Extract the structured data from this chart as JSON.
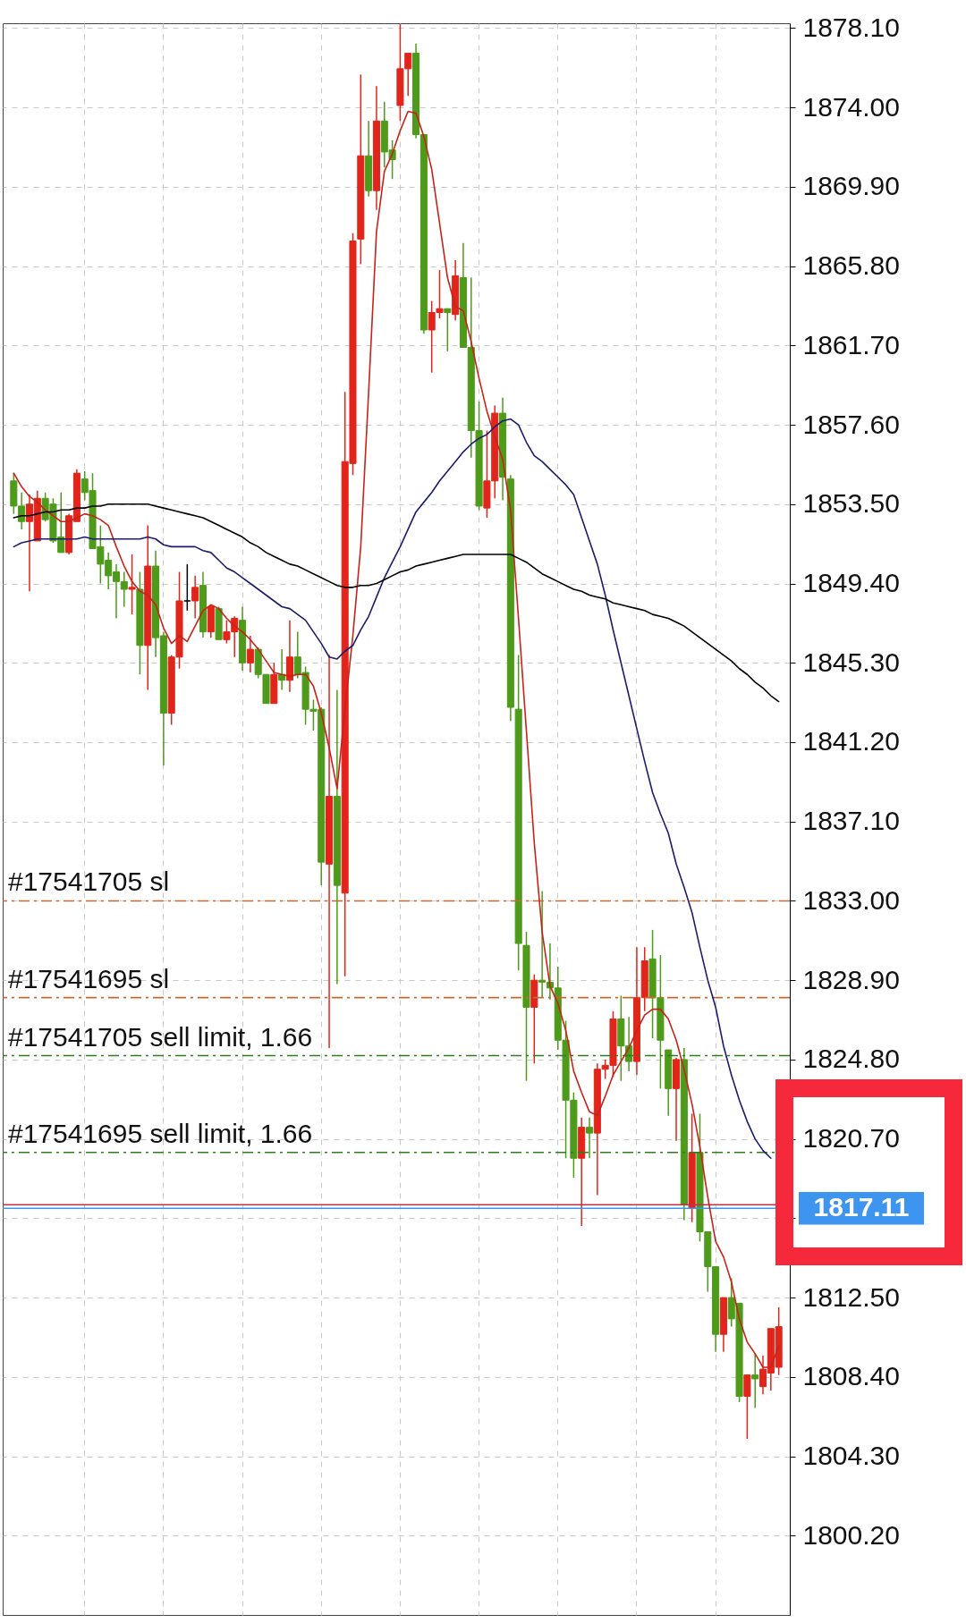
{
  "chart_data": {
    "type": "candlestick",
    "categories": [
      null,
      null,
      null,
      null,
      null,
      null,
      null,
      null,
      null,
      null,
      null,
      null,
      null,
      null,
      null,
      null,
      null,
      null,
      null,
      null,
      null,
      null,
      null,
      null,
      null,
      null,
      null,
      null,
      null,
      null,
      null,
      null,
      null,
      null,
      null,
      null,
      null,
      null,
      null,
      null,
      null,
      null,
      null,
      null,
      null,
      null,
      null,
      null,
      null,
      null,
      null,
      null,
      null,
      null,
      null,
      null,
      null,
      null,
      null,
      null,
      null,
      null,
      null,
      null,
      null,
      null,
      null,
      null,
      null,
      null,
      null,
      null,
      null,
      null,
      null,
      null,
      null,
      null,
      null,
      null,
      null,
      null,
      null,
      null,
      null,
      null,
      null,
      null,
      null,
      null,
      null,
      null,
      null,
      null,
      null,
      null,
      null,
      null
    ],
    "ohlc": [
      [
        1854.7,
        1855.1,
        1853.0,
        1853.4
      ],
      [
        1853.4,
        1854.1,
        1852.2,
        1852.6
      ],
      [
        1852.6,
        1854.0,
        1849.0,
        1853.5
      ],
      [
        1851.6,
        1854.2,
        1851.6,
        1853.8
      ],
      [
        1853.8,
        1854.1,
        1852.6,
        1852.7
      ],
      [
        1853.5,
        1853.8,
        1851.5,
        1851.6
      ],
      [
        1851.8,
        1854.1,
        1851.0,
        1851.0
      ],
      [
        1851.0,
        1853.0,
        1850.9,
        1852.9
      ],
      [
        1852.6,
        1855.3,
        1852.6,
        1855.1
      ],
      [
        1854.8,
        1855.2,
        1853.7,
        1854.1
      ],
      [
        1854.2,
        1855.1,
        1851.2,
        1851.2
      ],
      [
        1851.3,
        1852.4,
        1849.4,
        1850.4
      ],
      [
        1850.6,
        1851.0,
        1849.1,
        1849.8
      ],
      [
        1850.0,
        1850.4,
        1847.6,
        1849.5
      ],
      [
        1849.5,
        1850.0,
        1848.2,
        1849.1
      ],
      [
        1849.1,
        1850.9,
        1847.8,
        1849.2
      ],
      [
        1849.1,
        1850.0,
        1844.7,
        1846.2
      ],
      [
        1846.2,
        1852.4,
        1843.9,
        1850.3
      ],
      [
        1850.3,
        1851.1,
        1845.6,
        1846.6
      ],
      [
        1846.7,
        1846.9,
        1840.0,
        1842.7
      ],
      [
        1842.7,
        1845.7,
        1842.1,
        1845.6
      ],
      [
        1845.6,
        1850.0,
        1845.0,
        1848.5
      ],
      [
        1848.5,
        1850.4,
        1848.0,
        1848.5
      ],
      [
        1848.5,
        1849.8,
        1847.6,
        1849.2
      ],
      [
        1849.3,
        1850.0,
        1846.6,
        1846.9
      ],
      [
        1846.9,
        1848.3,
        1846.6,
        1848.2
      ],
      [
        1848.1,
        1848.2,
        1846.5,
        1846.5
      ],
      [
        1846.5,
        1847.5,
        1846.3,
        1846.9
      ],
      [
        1846.9,
        1847.7,
        1845.6,
        1847.6
      ],
      [
        1847.5,
        1848.2,
        1844.9,
        1845.3
      ],
      [
        1845.3,
        1846.7,
        1844.8,
        1846.0
      ],
      [
        1846.0,
        1846.1,
        1844.5,
        1844.7
      ],
      [
        1844.7,
        1844.7,
        1843.2,
        1843.2
      ],
      [
        1843.2,
        1845.3,
        1843.2,
        1844.7
      ],
      [
        1844.7,
        1846.0,
        1843.9,
        1844.4
      ],
      [
        1844.4,
        1847.5,
        1843.8,
        1845.6
      ],
      [
        1845.6,
        1846.9,
        1844.5,
        1844.7
      ],
      [
        1844.8,
        1845.1,
        1842.1,
        1842.9
      ],
      [
        1842.9,
        1843.4,
        1841.8,
        1842.8
      ],
      [
        1842.9,
        1843.0,
        1833.8,
        1835.0
      ],
      [
        1834.9,
        1845.7,
        1825.4,
        1838.4
      ],
      [
        1838.4,
        1843.9,
        1828.7,
        1833.8
      ],
      [
        1833.4,
        1859.3,
        1829.1,
        1855.7
      ],
      [
        1855.6,
        1867.5,
        1855.0,
        1867.1
      ],
      [
        1867.2,
        1875.7,
        1865.9,
        1871.5
      ],
      [
        1871.5,
        1873.3,
        1869.4,
        1869.7
      ],
      [
        1869.7,
        1875.1,
        1868.7,
        1873.3
      ],
      [
        1873.3,
        1874.3,
        1870.9,
        1871.7
      ],
      [
        1871.8,
        1872.3,
        1870.3,
        1871.3
      ],
      [
        1874.1,
        1878.3,
        1873.3,
        1876.0
      ],
      [
        1876.0,
        1876.8,
        1874.6,
        1876.8
      ],
      [
        1876.8,
        1877.3,
        1872.4,
        1872.6
      ],
      [
        1872.6,
        1872.6,
        1862.3,
        1862.5
      ],
      [
        1862.5,
        1864.0,
        1860.3,
        1863.4
      ],
      [
        1863.4,
        1865.6,
        1863.1,
        1863.6
      ],
      [
        1863.6,
        1863.6,
        1861.4,
        1863.4
      ],
      [
        1863.3,
        1866.1,
        1863.0,
        1865.3
      ],
      [
        1865.2,
        1867.0,
        1861.6,
        1861.6
      ],
      [
        1861.6,
        1865.2,
        1855.9,
        1857.3
      ],
      [
        1857.3,
        1858.8,
        1853.2,
        1853.4
      ],
      [
        1853.3,
        1857.3,
        1852.8,
        1854.7
      ],
      [
        1854.7,
        1858.6,
        1853.8,
        1858.2
      ],
      [
        1858.2,
        1859.0,
        1853.7,
        1854.9
      ],
      [
        1854.8,
        1855.0,
        1842.3,
        1843.0
      ],
      [
        1842.9,
        1845.7,
        1829.4,
        1830.8
      ],
      [
        1830.7,
        1831.4,
        1823.7,
        1827.5
      ],
      [
        1827.5,
        1829.2,
        1824.6,
        1828.9
      ],
      [
        1828.9,
        1833.5,
        1828.0,
        1828.8
      ],
      [
        1828.8,
        1830.8,
        1827.9,
        1828.5
      ],
      [
        1828.5,
        1829.6,
        1825.3,
        1825.8
      ],
      [
        1825.8,
        1826.8,
        1819.7,
        1822.7
      ],
      [
        1822.7,
        1823.1,
        1818.7,
        1819.7
      ],
      [
        1819.7,
        1821.8,
        1816.2,
        1821.3
      ],
      [
        1821.3,
        1821.8,
        1819.7,
        1821.0
      ],
      [
        1821.0,
        1824.6,
        1817.8,
        1824.3
      ],
      [
        1824.3,
        1824.8,
        1823.8,
        1824.5
      ],
      [
        1824.5,
        1827.3,
        1823.9,
        1826.9
      ],
      [
        1826.9,
        1828.1,
        1823.7,
        1825.5
      ],
      [
        1825.5,
        1827.0,
        1824.2,
        1824.7
      ],
      [
        1824.7,
        1830.6,
        1824.0,
        1828.0
      ],
      [
        1828.0,
        1830.6,
        1827.3,
        1829.9
      ],
      [
        1830.0,
        1831.5,
        1825.9,
        1828.0
      ],
      [
        1828.0,
        1830.2,
        1823.3,
        1825.8
      ],
      [
        1825.3,
        1825.3,
        1821.9,
        1823.3
      ],
      [
        1823.3,
        1824.9,
        1820.6,
        1824.8
      ],
      [
        1824.8,
        1825.4,
        1816.5,
        1817.3
      ],
      [
        1817.1,
        1822.0,
        1816.4,
        1820.0
      ],
      [
        1820.0,
        1822.0,
        1815.4,
        1815.9
      ],
      [
        1815.9,
        1815.9,
        1812.8,
        1814.1
      ],
      [
        1814.1,
        1814.1,
        1809.7,
        1810.6
      ],
      [
        1810.6,
        1812.5,
        1809.7,
        1812.5
      ],
      [
        1812.5,
        1813.5,
        1811.0,
        1811.4
      ],
      [
        1812.2,
        1812.2,
        1807.1,
        1807.4
      ],
      [
        1807.4,
        1808.5,
        1805.2,
        1808.5
      ],
      [
        1808.5,
        1809.6,
        1806.8,
        1808.3
      ],
      [
        1807.9,
        1809.5,
        1807.5,
        1808.8
      ],
      [
        1808.6,
        1810.9,
        1807.7,
        1810.9
      ],
      [
        1808.9,
        1812.0,
        1808.5,
        1811.0
      ]
    ],
    "colors": [
      "#4e9a1a",
      "#4e9a1a",
      "#e1251b",
      "#e1251b",
      "#4e9a1a",
      "#4e9a1a",
      "#4e9a1a",
      "#e1251b",
      "#e1251b",
      "#4e9a1a",
      "#4e9a1a",
      "#4e9a1a",
      "#4e9a1a",
      "#4e9a1a",
      "#4e9a1a",
      "#e1251b",
      "#4e9a1a",
      "#e1251b",
      "#4e9a1a",
      "#4e9a1a",
      "#e1251b",
      "#e1251b",
      "#000000",
      "#e1251b",
      "#4e9a1a",
      "#e1251b",
      "#4e9a1a",
      "#e1251b",
      "#e1251b",
      "#4e9a1a",
      "#e1251b",
      "#4e9a1a",
      "#4e9a1a",
      "#e1251b",
      "#4e9a1a",
      "#e1251b",
      "#4e9a1a",
      "#4e9a1a",
      "#4e9a1a",
      "#4e9a1a",
      "#e1251b",
      "#4e9a1a",
      "#e1251b",
      "#e1251b",
      "#e1251b",
      "#4e9a1a",
      "#e1251b",
      "#4e9a1a",
      "#4e9a1a",
      "#e1251b",
      "#e1251b",
      "#4e9a1a",
      "#4e9a1a",
      "#e1251b",
      "#e1251b",
      "#4e9a1a",
      "#e1251b",
      "#4e9a1a",
      "#4e9a1a",
      "#4e9a1a",
      "#e1251b",
      "#e1251b",
      "#4e9a1a",
      "#4e9a1a",
      "#4e9a1a",
      "#4e9a1a",
      "#e1251b",
      "#4e9a1a",
      "#4e9a1a",
      "#4e9a1a",
      "#4e9a1a",
      "#4e9a1a",
      "#e1251b",
      "#4e9a1a",
      "#e1251b",
      "#e1251b",
      "#e1251b",
      "#4e9a1a",
      "#4e9a1a",
      "#e1251b",
      "#e1251b",
      "#4e9a1a",
      "#4e9a1a",
      "#4e9a1a",
      "#e1251b",
      "#4e9a1a",
      "#e1251b",
      "#4e9a1a",
      "#4e9a1a",
      "#4e9a1a",
      "#e1251b",
      "#4e9a1a",
      "#4e9a1a",
      "#e1251b",
      "#4e9a1a",
      "#e1251b",
      "#e1251b",
      "#e1251b"
    ],
    "series": [
      {
        "type": "line",
        "color": "#c8231a",
        "values": [
          1855.1,
          1854.4,
          1853.9,
          1853.6,
          1853.2,
          1852.9,
          1852.6,
          1852.6,
          1852.8,
          1853.0,
          1852.9,
          1852.7,
          1852.4,
          1851.3,
          1850.3,
          1849.5,
          1849.0,
          1848.8,
          1848.3,
          1847.1,
          1846.3,
          1846.7,
          1846.4,
          1847.2,
          1848.0,
          1848.3,
          1848.1,
          1847.6,
          1847.2,
          1846.9,
          1846.5,
          1846.0,
          1845.4,
          1844.8,
          1844.7,
          1844.6,
          1844.7,
          1844.7,
          1844.1,
          1842.7,
          1840.9,
          1838.8,
          1842.9,
          1846.7,
          1851.3,
          1859.3,
          1867.6,
          1870.7,
          1871.6,
          1872.8,
          1873.8,
          1873.7,
          1872.5,
          1870.8,
          1868.0,
          1865.2,
          1863.7,
          1863.5,
          1861.9,
          1860.0,
          1858.3,
          1857.0,
          1855.8,
          1853.2,
          1847.6,
          1841.8,
          1836.0,
          1831.4,
          1828.6,
          1827.7,
          1826.3,
          1824.2,
          1823.1,
          1822.1,
          1821.9,
          1822.9,
          1824.0,
          1824.7,
          1825.4,
          1826.3,
          1827.1,
          1827.4,
          1827.4,
          1826.9,
          1825.8,
          1824.3,
          1822.5,
          1820.3,
          1817.7,
          1815.4,
          1814.6,
          1813.3,
          1811.4,
          1810.2,
          1809.6,
          1808.9,
          1808.9,
          1810.0
        ]
      },
      {
        "type": "line",
        "color": "#1c1c6e",
        "values": [
          1851.3,
          1851.5,
          1851.6,
          1851.7,
          1851.7,
          1851.7,
          1851.7,
          1851.7,
          1851.7,
          1851.8,
          1851.7,
          1851.7,
          1851.7,
          1851.7,
          1851.7,
          1851.7,
          1851.7,
          1851.8,
          1851.7,
          1851.4,
          1851.3,
          1851.3,
          1851.3,
          1851.3,
          1851.1,
          1851.0,
          1850.6,
          1850.2,
          1850.0,
          1849.7,
          1849.4,
          1849.1,
          1848.8,
          1848.5,
          1848.2,
          1848.1,
          1847.8,
          1847.5,
          1846.9,
          1846.3,
          1845.6,
          1845.5,
          1845.9,
          1846.2,
          1847.0,
          1847.7,
          1848.7,
          1849.7,
          1850.5,
          1851.3,
          1852.2,
          1853.1,
          1853.6,
          1854.1,
          1854.7,
          1855.2,
          1855.7,
          1856.2,
          1856.6,
          1856.9,
          1857.1,
          1857.5,
          1857.8,
          1857.9,
          1857.6,
          1856.7,
          1856.0,
          1855.7,
          1855.3,
          1854.9,
          1854.5,
          1854.0,
          1852.8,
          1851.6,
          1850.4,
          1848.8,
          1847.0,
          1845.3,
          1843.6,
          1841.9,
          1840.2,
          1838.6,
          1837.5,
          1836.5,
          1834.9,
          1833.7,
          1832.4,
          1830.6,
          1828.9,
          1827.5,
          1825.5,
          1824.0,
          1822.7,
          1821.6,
          1820.7,
          1820.1,
          1819.7,
          null
        ]
      },
      {
        "type": "line",
        "color": "#000000",
        "values": [
          1852.8,
          1852.9,
          1852.9,
          1853.0,
          1853.1,
          1853.1,
          1853.2,
          1853.2,
          1853.3,
          1853.3,
          1853.4,
          1853.4,
          1853.5,
          1853.5,
          1853.5,
          1853.5,
          1853.5,
          1853.5,
          1853.4,
          1853.3,
          1853.2,
          1853.1,
          1853.0,
          1852.9,
          1852.8,
          1852.6,
          1852.4,
          1852.2,
          1852.0,
          1851.8,
          1851.5,
          1851.3,
          1851.0,
          1850.8,
          1850.6,
          1850.4,
          1850.3,
          1850.1,
          1849.9,
          1849.7,
          1849.5,
          1849.3,
          1849.2,
          1849.2,
          1849.3,
          1849.3,
          1849.4,
          1849.6,
          1849.8,
          1850.0,
          1850.1,
          1850.3,
          1850.4,
          1850.5,
          1850.6,
          1850.7,
          1850.8,
          1850.9,
          1850.9,
          1850.9,
          1850.9,
          1850.9,
          1850.9,
          1850.9,
          1850.7,
          1850.5,
          1850.2,
          1849.9,
          1849.7,
          1849.5,
          1849.3,
          1849.1,
          1849.0,
          1848.8,
          1848.7,
          1848.6,
          1848.4,
          1848.3,
          1848.2,
          1848.1,
          1848.0,
          1847.8,
          1847.7,
          1847.6,
          1847.4,
          1847.2,
          1846.9,
          1846.6,
          1846.3,
          1846.0,
          1845.7,
          1845.4,
          1845.0,
          1844.7,
          1844.3,
          1844.0,
          1843.6,
          1843.3
        ]
      }
    ],
    "ref_lines": [
      {
        "axis": "y",
        "value": 1833.0,
        "label": "#17541705 sl",
        "color": "#c8682e",
        "line_style": "dashed"
      },
      {
        "axis": "y",
        "value": 1828.0,
        "label": "#17541695 sl",
        "color": "#c8682e",
        "line_style": "dashed"
      },
      {
        "axis": "y",
        "value": 1825.0,
        "label": "#17541705 sell limit, 1.66",
        "color": "#2e7d1e",
        "line_style": "dashed"
      },
      {
        "axis": "y",
        "value": 1820.0,
        "label": "#17541695 sell limit, 1.66",
        "color": "#2e7d1e",
        "line_style": "dashed"
      },
      {
        "axis": "y",
        "value": 1817.3,
        "color": "#c0304a",
        "line_style": "solid"
      },
      {
        "axis": "y",
        "value": 1817.11,
        "label": "1817.11",
        "color": "#3d95ef",
        "line_style": "solid"
      }
    ],
    "ylim": [
      1796.1,
      1878.35
    ],
    "yticks": [
      {
        "value": 1800.2,
        "label": "1800.20"
      },
      {
        "value": 1804.3,
        "label": "1804.30"
      },
      {
        "value": 1808.4,
        "label": "1808.40"
      },
      {
        "value": 1812.5,
        "label": "1812.50"
      },
      {
        "value": 1816.6,
        "label": null
      },
      {
        "value": 1820.7,
        "label": "1820.70"
      },
      {
        "value": 1824.8,
        "label": "1824.80"
      },
      {
        "value": 1828.9,
        "label": "1828.90"
      },
      {
        "value": 1833.0,
        "label": "1833.00"
      },
      {
        "value": 1837.1,
        "label": "1837.10"
      },
      {
        "value": 1841.2,
        "label": "1841.20"
      },
      {
        "value": 1845.3,
        "label": "1845.30"
      },
      {
        "value": 1849.4,
        "label": "1849.40"
      },
      {
        "value": 1853.5,
        "label": "1853.50"
      },
      {
        "value": 1857.6,
        "label": "1857.60"
      },
      {
        "value": 1861.7,
        "label": "1861.70"
      },
      {
        "value": 1865.8,
        "label": "1865.80"
      },
      {
        "value": 1869.9,
        "label": "1869.90"
      },
      {
        "value": 1874.0,
        "label": "1874.00"
      },
      {
        "value": 1878.1,
        "label": "1878.10"
      }
    ],
    "grid": true,
    "tick_labels": "y"
  }
}
